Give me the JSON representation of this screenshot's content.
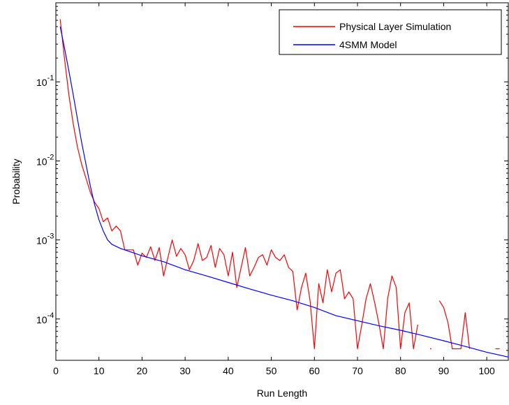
{
  "chart_data": {
    "type": "line",
    "title": "",
    "xlabel": "Run Length",
    "ylabel": "Probability",
    "xlim": [
      0,
      105
    ],
    "ylim": [
      3e-05,
      1
    ],
    "yscale": "log",
    "xticks": [
      0,
      10,
      20,
      30,
      40,
      50,
      60,
      70,
      80,
      90,
      100
    ],
    "yticks": [
      {
        "value": 0.1,
        "base": "10",
        "exp": "-1"
      },
      {
        "value": 0.01,
        "base": "10",
        "exp": "-2"
      },
      {
        "value": 0.001,
        "base": "10",
        "exp": "-3"
      },
      {
        "value": 0.0001,
        "base": "10",
        "exp": "-4"
      }
    ],
    "grid": false,
    "legend_position": "top-right",
    "series": [
      {
        "name": "Physical Layer Simulation",
        "color": "#ff0000",
        "segments": [
          [
            [
              1,
              0.62
            ],
            [
              2,
              0.2
            ],
            [
              3,
              0.07
            ],
            [
              4,
              0.03
            ],
            [
              5,
              0.015
            ],
            [
              6,
              0.009
            ],
            [
              7,
              0.006
            ],
            [
              8,
              0.004
            ],
            [
              9,
              0.003
            ],
            [
              10,
              0.0025
            ],
            [
              11,
              0.0017
            ],
            [
              12,
              0.0019
            ],
            [
              13,
              0.0013
            ],
            [
              14,
              0.0015
            ],
            [
              15,
              0.0013
            ],
            [
              16,
              0.00075
            ],
            [
              17,
              0.00075
            ],
            [
              18,
              0.00075
            ],
            [
              19,
              0.00048
            ],
            [
              20,
              0.00068
            ],
            [
              21,
              0.0006
            ],
            [
              22,
              0.00082
            ],
            [
              23,
              0.00055
            ],
            [
              24,
              0.0008
            ],
            [
              25,
              0.00035
            ],
            [
              26,
              0.0006
            ],
            [
              27,
              0.001
            ],
            [
              28,
              0.00062
            ],
            [
              29,
              0.00078
            ],
            [
              30,
              0.00065
            ],
            [
              31,
              0.00042
            ],
            [
              32,
              0.00055
            ],
            [
              33,
              0.0009
            ],
            [
              34,
              0.00055
            ],
            [
              35,
              0.0006
            ],
            [
              36,
              0.00085
            ],
            [
              37,
              0.00045
            ],
            [
              38,
              0.00078
            ],
            [
              39,
              0.00065
            ],
            [
              40,
              0.00035
            ],
            [
              41,
              0.0007
            ],
            [
              42,
              0.00025
            ],
            [
              43,
              0.00045
            ],
            [
              44,
              0.0008
            ],
            [
              45,
              0.00035
            ],
            [
              46,
              0.00045
            ],
            [
              47,
              0.0006
            ],
            [
              48,
              0.00065
            ],
            [
              49,
              0.00048
            ],
            [
              50,
              0.00075
            ],
            [
              51,
              0.0006
            ],
            [
              52,
              0.00055
            ],
            [
              53,
              0.00065
            ],
            [
              54,
              0.00045
            ],
            [
              55,
              0.0004
            ],
            [
              56,
              0.00013
            ],
            [
              57,
              0.00025
            ],
            [
              58,
              0.00038
            ],
            [
              59,
              0.00017
            ],
            [
              60,
              4.2e-05
            ],
            [
              61,
              0.00028
            ],
            [
              62,
              0.00016
            ],
            [
              63,
              0.00042
            ],
            [
              64,
              0.00022
            ],
            [
              65,
              0.00038
            ],
            [
              66,
              0.00042
            ],
            [
              67,
              0.00018
            ],
            [
              68,
              0.00022
            ],
            [
              69,
              0.00018
            ],
            [
              70,
              4.2e-05
            ],
            [
              71,
              8.5e-05
            ],
            [
              72,
              0.00018
            ],
            [
              73,
              0.00028
            ],
            [
              74,
              0.00016
            ],
            [
              75,
              8.5e-05
            ],
            [
              76,
              4.2e-05
            ],
            [
              77,
              0.00018
            ],
            [
              78,
              0.00035
            ],
            [
              79,
              0.00025
            ],
            [
              80,
              4.2e-05
            ],
            [
              81,
              0.00012
            ],
            [
              82,
              0.00016
            ],
            [
              83,
              4.2e-05
            ],
            [
              84,
              8.5e-05
            ]
          ],
          [
            [
              87,
              4.2e-05
            ]
          ],
          [
            [
              89,
              0.00017
            ],
            [
              90,
              0.00014
            ],
            [
              91,
              9e-05
            ],
            [
              92,
              4.2e-05
            ],
            [
              93,
              4.2e-05
            ],
            [
              94,
              4.2e-05
            ],
            [
              95,
              0.00012
            ],
            [
              96,
              4.2e-05
            ]
          ],
          [
            [
              102,
              4.2e-05
            ],
            [
              103,
              4.2e-05
            ]
          ]
        ]
      },
      {
        "name": "4SMM Model",
        "color": "#0000ff",
        "segments": [
          [
            [
              1,
              0.5
            ],
            [
              2,
              0.27
            ],
            [
              3,
              0.14
            ],
            [
              4,
              0.07
            ],
            [
              5,
              0.034
            ],
            [
              6,
              0.017
            ],
            [
              7,
              0.009
            ],
            [
              8,
              0.0048
            ],
            [
              9,
              0.0028
            ],
            [
              10,
              0.0018
            ],
            [
              11,
              0.0013
            ],
            [
              12,
              0.001
            ],
            [
              13,
              0.00088
            ],
            [
              15,
              0.00078
            ],
            [
              20,
              0.00063
            ],
            [
              25,
              0.00053
            ],
            [
              30,
              0.00042
            ],
            [
              35,
              0.00035
            ],
            [
              40,
              0.00029
            ],
            [
              45,
              0.00024
            ],
            [
              50,
              0.0002
            ],
            [
              55,
              0.00017
            ],
            [
              60,
              0.00014
            ],
            [
              65,
              0.00011
            ],
            [
              70,
              9.5e-05
            ],
            [
              75,
              8.2e-05
            ],
            [
              80,
              7.2e-05
            ],
            [
              85,
              6.2e-05
            ],
            [
              90,
              5.3e-05
            ],
            [
              95,
              4.5e-05
            ],
            [
              100,
              3.8e-05
            ],
            [
              105,
              3.3e-05
            ]
          ]
        ]
      }
    ]
  }
}
